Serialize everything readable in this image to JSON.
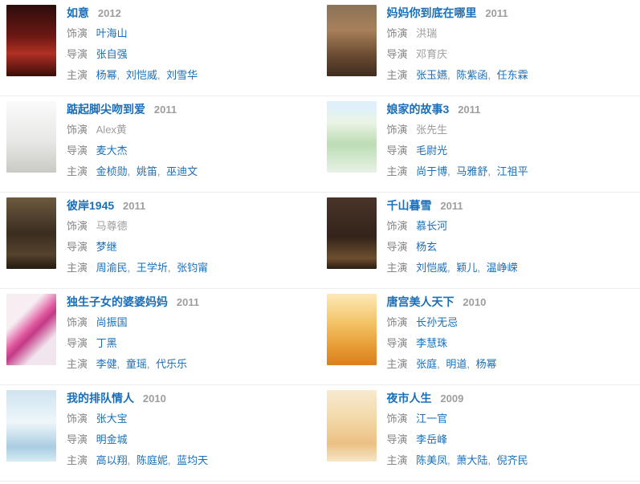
{
  "labels": {
    "role": "饰演",
    "director": "导演",
    "starring": "主演",
    "separator": ","
  },
  "colors": {
    "link_blue": "#1a6fb8",
    "year_gray": "#9e9e9e",
    "label_gray": "#858585",
    "plain_name_gray": "#9e9e9e",
    "divider": "#ececec",
    "background": "#ffffff"
  },
  "entries": [
    {
      "title": "如意",
      "year": "2012",
      "role": {
        "name": "叶海山",
        "link": true
      },
      "director": {
        "name": "张自强",
        "link": true
      },
      "starring": [
        "杨幂",
        "刘恺威",
        "刘雪华"
      ],
      "poster_icon": "poster-ruyi-red-wedding",
      "poster_style": "background:linear-gradient(180deg,#2b0d0c,#6f1813 45%,#b03024 68%,#3c0d08)"
    },
    {
      "title": "妈妈你到底在哪里",
      "year": "2011",
      "role": {
        "name": "洪瑞",
        "link": false
      },
      "director": {
        "name": "邓育庆",
        "link": false
      },
      "starring": [
        "张玉嬿",
        "陈紫函",
        "任东霖"
      ],
      "poster_icon": "poster-mama-sepia-drama",
      "poster_style": "background:linear-gradient(180deg,#8a7258,#a8805a 35%,#6b4c33 70%,#3f2c1e)"
    },
    {
      "title": "踮起脚尖吻到爱",
      "year": "2011",
      "role": {
        "name": "Alex黄",
        "link": false
      },
      "director": {
        "name": "麦大杰",
        "link": true
      },
      "starring": [
        "金桢勋",
        "姚笛",
        "巫迪文"
      ],
      "poster_icon": "poster-kiss-white-couple",
      "poster_style": "background:linear-gradient(180deg,#fafafa,#e8e8e6 55%,#c9c9c5)"
    },
    {
      "title": "娘家的故事3",
      "year": "2011",
      "role": {
        "name": "张先生",
        "link": false
      },
      "director": {
        "name": "毛尉光",
        "link": true
      },
      "starring": [
        "尚于博",
        "马雅舒",
        "江祖平"
      ],
      "poster_icon": "poster-niangjia-green-group",
      "poster_style": "background:linear-gradient(180deg,#dff0fa 8%,#eaf4e4 30%,#bcdcb4 60%,#e8f2e6)"
    },
    {
      "title": "彼岸1945",
      "year": "2011",
      "role": {
        "name": "马尊德",
        "link": false
      },
      "director": {
        "name": "梦继",
        "link": true
      },
      "starring": [
        "周渝民",
        "王学圻",
        "张钧甯"
      ],
      "poster_icon": "poster-bian1945-war-sepia",
      "poster_style": "background:linear-gradient(180deg,#6e5a40,#3a2d1f 50%,#55422c 80%,#241a10)"
    },
    {
      "title": "千山暮雪",
      "year": "2011",
      "role": {
        "name": "慕长河",
        "link": true
      },
      "director": {
        "name": "杨玄",
        "link": true
      },
      "starring": [
        "刘恺威",
        "颖儿",
        "温峥嵘"
      ],
      "poster_icon": "poster-qianshan-dark-brown",
      "poster_style": "background:linear-gradient(180deg,#4a3429,#33231a 55%,#6e4f2f 85%,#2b1c12)"
    },
    {
      "title": "独生子女的婆婆妈妈",
      "year": "2011",
      "role": {
        "name": "尚振国",
        "link": true
      },
      "director": {
        "name": "丁黑",
        "link": true
      },
      "starring": [
        "李健",
        "童瑶",
        "代乐乐"
      ],
      "poster_icon": "poster-dusheng-pink-stripe",
      "poster_style": "background:linear-gradient(135deg,#f6eef3 30%,#e0569d 48%,#c23a86 55%,#f2e6ee 75%)"
    },
    {
      "title": "唐宫美人天下",
      "year": "2010",
      "role": {
        "name": "长孙无忌",
        "link": true
      },
      "director": {
        "name": "李慧珠",
        "link": true
      },
      "starring": [
        "张庭",
        "明道",
        "杨幂"
      ],
      "poster_icon": "poster-tanggong-golden",
      "poster_style": "background:linear-gradient(180deg,#fde9b8,#f3c468 40%,#e79b33 75%,#d97f1f)"
    },
    {
      "title": "我的排队情人",
      "year": "2010",
      "role": {
        "name": "张大宝",
        "link": true
      },
      "director": {
        "name": "明金城",
        "link": true
      },
      "starring": [
        "高以翔",
        "陈庭妮",
        "蓝均天"
      ],
      "poster_icon": "poster-paidui-lightblue-teen",
      "poster_style": "background:linear-gradient(180deg,#cfe4f0,#eef6fa 45%,#a9cde2 80%,#d8ecf5)"
    },
    {
      "title": "夜市人生",
      "year": "2009",
      "role": {
        "name": "江一官",
        "link": true
      },
      "director": {
        "name": "李岳峰",
        "link": true
      },
      "starring": [
        "陈美凤",
        "萧大陆",
        "倪齐民"
      ],
      "poster_icon": "poster-yeshi-peach-market",
      "poster_style": "background:linear-gradient(180deg,#f7ead0,#f3d9a8 40%,#ecc084 75%,#f6e7c6)"
    }
  ]
}
